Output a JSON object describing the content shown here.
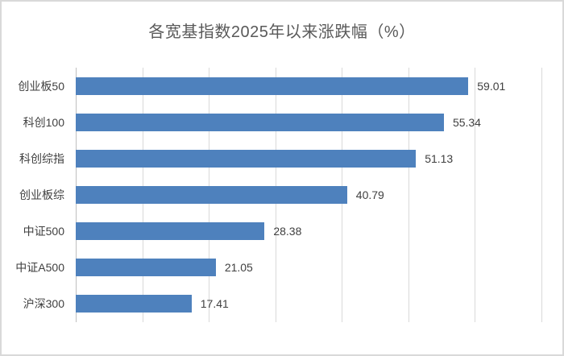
{
  "window": {
    "background": "#ffffff",
    "border_color": "#d9d9d9"
  },
  "chart_data": {
    "type": "bar",
    "orientation": "horizontal",
    "title": "各宽基指数2025年以来涨跌幅（%）",
    "categories": [
      "创业板50",
      "科创100",
      "科创综指",
      "创业板综",
      "中证500",
      "中证A500",
      "沪深300"
    ],
    "values": [
      59.01,
      55.34,
      51.13,
      40.79,
      28.38,
      21.05,
      17.41
    ],
    "value_labels": [
      "59.01",
      "55.34",
      "51.13",
      "40.79",
      "28.38",
      "21.05",
      "17.41"
    ],
    "xlabel": "",
    "ylabel": "",
    "xlim": [
      0,
      70
    ],
    "grid_step": 10,
    "grid": true,
    "legend_position": "none",
    "bar_color": "#4e81bd",
    "gridline_color": "#d9d9d9",
    "axis_line_color": "#bfbfbf",
    "title_color": "#595959",
    "label_color": "#3f3f3f",
    "value_label_color": "#404040"
  }
}
